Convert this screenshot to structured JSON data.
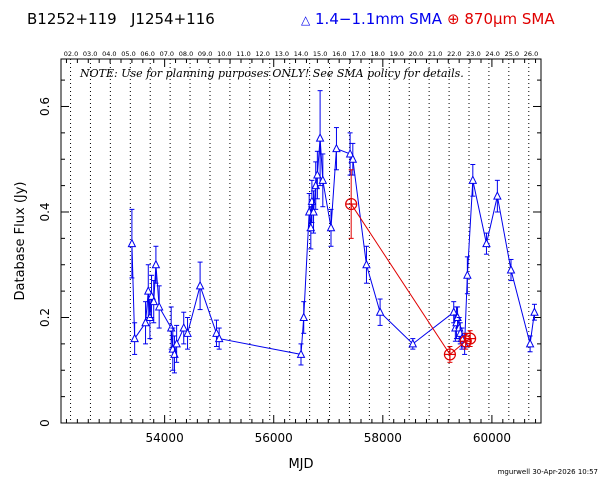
{
  "header": {
    "source_name": "B1252+119",
    "source_alias": "J1254+116",
    "legend_blue_label": "1.4−1.1mm SMA",
    "legend_red_label": "870μm SMA"
  },
  "note": "NOTE: Use for planning purposes ONLY!  See SMA policy for details.",
  "footer": {
    "credit": "mgurwell 30-Apr-2026 10:57"
  },
  "colors": {
    "blue": "#0000ee",
    "red": "#e00000",
    "axes": "#000000",
    "grid": "#000000"
  },
  "chart_data": {
    "type": "scatter",
    "xlabel": "MJD",
    "ylabel": "Database Flux (Jy)",
    "xlim": [
      52100,
      60900
    ],
    "ylim": [
      0,
      0.69
    ],
    "x_ticks": [
      54000,
      56000,
      58000,
      60000
    ],
    "y_ticks": [
      0,
      0.2,
      0.4,
      0.6
    ],
    "top_axis_labels": [
      "02.0",
      "03.0",
      "04.0",
      "05.0",
      "06.0",
      "07.0",
      "08.0",
      "09.0",
      "10.0",
      "11.0",
      "12.0",
      "13.0",
      "14.0",
      "15.0",
      "16.0",
      "17.0",
      "18.0",
      "19.0",
      "20.0",
      "21.0",
      "22.0",
      "23.0",
      "24.0",
      "25.0",
      "26.0"
    ],
    "year_gridlines_mjd": [
      52275,
      52640,
      53005,
      53371,
      53736,
      54101,
      54466,
      54832,
      55197,
      55562,
      55927,
      56293,
      56658,
      57023,
      57388,
      57754,
      58119,
      58484,
      58849,
      59215,
      59580,
      59945,
      60310,
      60676
    ],
    "series": [
      {
        "name": "1.4−1.1mm SMA",
        "color": "#0000ee",
        "marker": "triangle",
        "connected": true,
        "x": [
          53400,
          53450,
          53650,
          53700,
          53730,
          53760,
          53800,
          53840,
          53900,
          54120,
          54150,
          54180,
          54220,
          54350,
          54420,
          54650,
          54950,
          55000,
          56500,
          56550,
          56650,
          56680,
          56700,
          56730,
          56770,
          56800,
          56850,
          56900,
          57050,
          57150,
          57400,
          57450,
          57700,
          57950,
          58550,
          59300,
          59330,
          59350,
          59370,
          59400,
          59420,
          59450,
          59500,
          59550,
          59650,
          59900,
          60100,
          60350,
          60700,
          60780
        ],
        "y": [
          0.34,
          0.16,
          0.19,
          0.25,
          0.2,
          0.24,
          0.23,
          0.3,
          0.22,
          0.18,
          0.14,
          0.13,
          0.15,
          0.18,
          0.17,
          0.26,
          0.17,
          0.16,
          0.13,
          0.2,
          0.4,
          0.37,
          0.42,
          0.4,
          0.45,
          0.47,
          0.54,
          0.46,
          0.37,
          0.52,
          0.51,
          0.5,
          0.3,
          0.21,
          0.15,
          0.21,
          0.18,
          0.19,
          0.2,
          0.18,
          0.17,
          0.16,
          0.15,
          0.28,
          0.46,
          0.34,
          0.43,
          0.29,
          0.15,
          0.21
        ],
        "err": [
          0.065,
          0.03,
          0.04,
          0.05,
          0.04,
          0.04,
          0.04,
          0.035,
          0.04,
          0.04,
          0.04,
          0.035,
          0.035,
          0.03,
          0.03,
          0.045,
          0.025,
          0.02,
          0.02,
          0.03,
          0.035,
          0.04,
          0.04,
          0.04,
          0.045,
          0.045,
          0.09,
          0.05,
          0.035,
          0.04,
          0.04,
          0.03,
          0.035,
          0.025,
          0.01,
          0.02,
          0.025,
          0.03,
          0.02,
          0.02,
          0.02,
          0.02,
          0.02,
          0.035,
          0.03,
          0.02,
          0.03,
          0.02,
          0.015,
          0.015
        ]
      },
      {
        "name": "870μm SMA",
        "color": "#e00000",
        "marker": "circle-plus",
        "connected": true,
        "x": [
          57420,
          59230,
          59520,
          59600
        ],
        "y": [
          0.415,
          0.13,
          0.155,
          0.16
        ],
        "err": [
          0.065,
          0.015,
          0.015,
          0.015
        ]
      }
    ]
  }
}
